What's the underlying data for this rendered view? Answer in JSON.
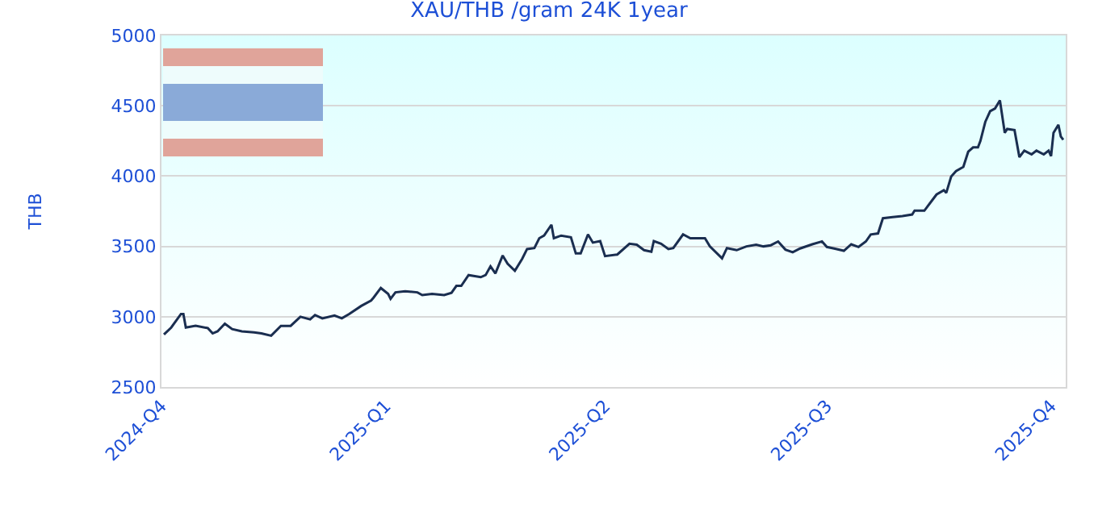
{
  "chart_data": {
    "type": "line",
    "title": "XAU/THB /gram 24K 1year",
    "ylabel": "THB",
    "x": [
      "2024-10-02",
      "2024-10-05",
      "2024-10-09",
      "2024-10-10",
      "2024-10-11",
      "2024-10-15",
      "2024-10-20",
      "2024-10-22",
      "2024-10-24",
      "2024-10-27",
      "2024-10-30",
      "2024-11-03",
      "2024-11-08",
      "2024-11-11",
      "2024-11-15",
      "2024-11-19",
      "2024-11-23",
      "2024-11-27",
      "2024-12-01",
      "2024-12-03",
      "2024-12-06",
      "2024-12-11",
      "2024-12-14",
      "2024-12-17",
      "2024-12-22",
      "2024-12-26",
      "2024-12-27",
      "2024-12-30",
      "2025-01-02",
      "2025-01-03",
      "2025-01-05",
      "2025-01-09",
      "2025-01-14",
      "2025-01-16",
      "2025-01-20",
      "2025-01-25",
      "2025-01-28",
      "2025-01-30",
      "2025-02-01",
      "2025-02-04",
      "2025-02-09",
      "2025-02-11",
      "2025-02-13",
      "2025-02-15",
      "2025-02-18",
      "2025-02-20",
      "2025-02-23",
      "2025-02-26",
      "2025-02-28",
      "2025-03-03",
      "2025-03-05",
      "2025-03-07",
      "2025-03-10",
      "2025-03-11",
      "2025-03-14",
      "2025-03-18",
      "2025-03-20",
      "2025-03-22",
      "2025-03-25",
      "2025-03-27",
      "2025-03-30",
      "2025-04-01",
      "2025-04-06",
      "2025-04-11",
      "2025-04-14",
      "2025-04-17",
      "2025-04-20",
      "2025-04-21",
      "2025-04-24",
      "2025-04-27",
      "2025-04-29",
      "2025-05-03",
      "2025-05-06",
      "2025-05-12",
      "2025-05-14",
      "2025-05-19",
      "2025-05-21",
      "2025-05-25",
      "2025-05-29",
      "2025-06-02",
      "2025-06-05",
      "2025-06-08",
      "2025-06-11",
      "2025-06-14",
      "2025-06-17",
      "2025-06-20",
      "2025-06-25",
      "2025-06-29",
      "2025-07-01",
      "2025-07-04",
      "2025-07-08",
      "2025-07-11",
      "2025-07-14",
      "2025-07-17",
      "2025-07-19",
      "2025-07-22",
      "2025-07-24",
      "2025-07-28",
      "2025-08-01",
      "2025-08-05",
      "2025-08-06",
      "2025-08-10",
      "2025-08-13",
      "2025-08-15",
      "2025-08-18",
      "2025-08-19",
      "2025-08-21",
      "2025-08-23",
      "2025-08-26",
      "2025-08-28",
      "2025-08-30",
      "2025-09-01",
      "2025-09-02",
      "2025-09-04",
      "2025-09-06",
      "2025-09-08",
      "2025-09-10",
      "2025-09-12",
      "2025-09-13",
      "2025-09-16",
      "2025-09-18",
      "2025-09-20",
      "2025-09-23",
      "2025-09-25",
      "2025-09-28",
      "2025-09-30",
      "2025-10-01",
      "2025-10-02",
      "2025-10-04",
      "2025-10-05",
      "2025-10-06"
    ],
    "series": [
      {
        "color": "#1a2e50",
        "values": [
          2873,
          2923,
          3019,
          3019,
          2923,
          2935,
          2919,
          2881,
          2896,
          2950,
          2912,
          2896,
          2888,
          2881,
          2865,
          2935,
          2935,
          3000,
          2981,
          3012,
          2988,
          3008,
          2988,
          3019,
          3077,
          3115,
          3135,
          3204,
          3162,
          3127,
          3173,
          3181,
          3173,
          3154,
          3162,
          3154,
          3170,
          3219,
          3219,
          3296,
          3281,
          3296,
          3358,
          3308,
          3435,
          3377,
          3327,
          3412,
          3481,
          3488,
          3558,
          3577,
          3654,
          3558,
          3577,
          3565,
          3450,
          3450,
          3585,
          3527,
          3538,
          3431,
          3442,
          3519,
          3512,
          3473,
          3462,
          3538,
          3519,
          3481,
          3488,
          3585,
          3558,
          3558,
          3500,
          3415,
          3488,
          3473,
          3500,
          3512,
          3500,
          3508,
          3535,
          3477,
          3458,
          3485,
          3515,
          3535,
          3496,
          3485,
          3469,
          3515,
          3496,
          3535,
          3585,
          3592,
          3700,
          3708,
          3715,
          3727,
          3754,
          3754,
          3823,
          3869,
          3900,
          3881,
          3996,
          4035,
          4065,
          4173,
          4204,
          4204,
          4250,
          4385,
          4462,
          4481,
          4538,
          4308,
          4335,
          4327,
          4135,
          4181,
          4154,
          4181,
          4154,
          4181,
          4142,
          4308,
          4365,
          4281,
          4258
        ]
      }
    ],
    "xlim": [
      "2024-10-01",
      "2025-10-07"
    ],
    "xticks": [
      {
        "value": "2024-10-01",
        "label": "2024-Q4"
      },
      {
        "value": "2025-01-01",
        "label": "2025-Q1"
      },
      {
        "value": "2025-04-01",
        "label": "2025-Q2"
      },
      {
        "value": "2025-07-01",
        "label": "2025-Q3"
      },
      {
        "value": "2025-10-01",
        "label": "2025-Q4"
      }
    ],
    "ylim": [
      2500,
      5000
    ],
    "yticks": [
      2500,
      3000,
      3500,
      4000,
      4500,
      5000
    ],
    "grid": "y",
    "marker": "none",
    "line_style": "solid"
  }
}
